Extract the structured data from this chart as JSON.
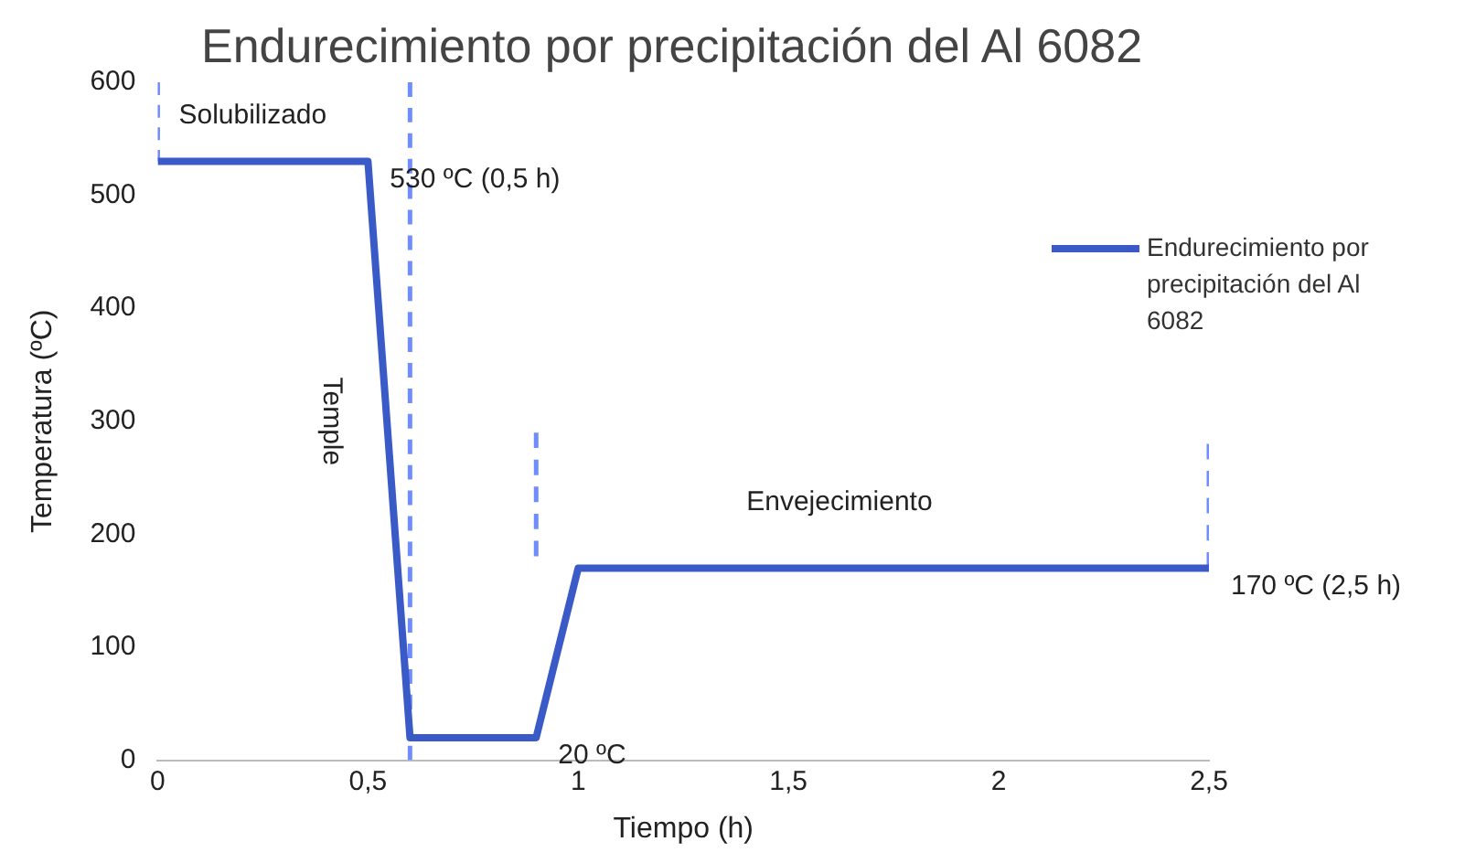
{
  "chart_data": {
    "type": "line",
    "title": "Endurecimiento por precipitación del Al 6082",
    "xlabel": "Tiempo (h)",
    "ylabel": "Temperatura (ºC)",
    "series": [
      {
        "name": "Endurecimiento por precipitación del Al 6082",
        "color": "#3a5bc7",
        "x": [
          0,
          0.5,
          0.6,
          0.9,
          1,
          2.5
        ],
        "values": [
          530,
          530,
          20,
          20,
          170,
          170
        ],
        "line_style": "solid"
      },
      {
        "color": "#6f8dff",
        "x": [
          0,
          0
        ],
        "values": [
          600,
          530
        ],
        "line_style": "dashed"
      },
      {
        "color": "#6f8dff",
        "x": [
          0.6,
          0.6
        ],
        "values": [
          600,
          0
        ],
        "line_style": "dashed"
      },
      {
        "color": "#6f8dff",
        "x": [
          0.9,
          0.9
        ],
        "values": [
          290,
          180
        ],
        "line_style": "dashed"
      },
      {
        "color": "#6f8dff",
        "x": [
          2.5,
          2.5
        ],
        "values": [
          280,
          170
        ],
        "line_style": "dashed"
      }
    ],
    "annotations": [
      "Solubilizado",
      {
        "text": "530 ºC (0,5 h)",
        "x": 0.5,
        "y": 530
      },
      "Temple",
      {
        "text": "20 ºC",
        "x": 0.9,
        "y": 20
      },
      "Envejecimiento",
      {
        "text": "170 ºC (2,5 h)",
        "x": 2.5,
        "y": 170
      }
    ],
    "xlim": [
      0,
      2.5
    ],
    "xticks": [
      0,
      {
        "value": 0.5,
        "label": "0,5"
      },
      1,
      {
        "value": 1.5,
        "label": "1,5"
      },
      2,
      {
        "value": 2.5,
        "label": "2,5"
      }
    ],
    "ylim": [
      0,
      600
    ],
    "yticks": [
      0,
      100,
      200,
      300,
      400,
      500,
      600
    ],
    "grid": false,
    "legend": "right",
    "marker": "none"
  }
}
